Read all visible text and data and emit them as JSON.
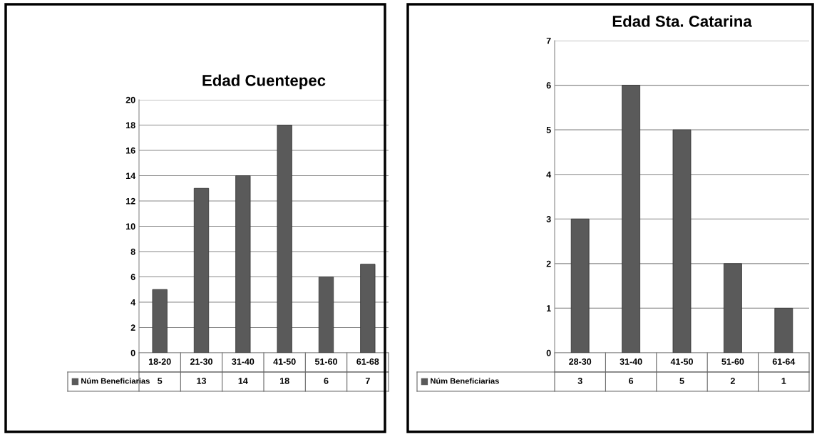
{
  "chart_data": [
    {
      "type": "bar",
      "title": "Edad Cuentepec",
      "categories": [
        "18-20",
        "21-30",
        "31-40",
        "41-50",
        "51-60",
        "61-68"
      ],
      "series": [
        {
          "name": "Núm Beneficiarias",
          "color": "#5a5a5a",
          "values": [
            5,
            13,
            14,
            18,
            6,
            7
          ]
        }
      ],
      "ylim": [
        0,
        20
      ],
      "yticks": [
        0,
        2,
        4,
        6,
        8,
        10,
        12,
        14,
        16,
        18,
        20
      ],
      "grid": "y",
      "data_labels": true
    },
    {
      "type": "bar",
      "title": "Edad Sta. Catarina",
      "categories": [
        "28-30",
        "31-40",
        "41-50",
        "51-60",
        "61-64"
      ],
      "series": [
        {
          "name": "Núm Beneficiarias",
          "color": "#5a5a5a",
          "values": [
            3,
            6,
            5,
            2,
            1
          ]
        }
      ],
      "ylim": [
        0,
        7
      ],
      "yticks": [
        0,
        1,
        2,
        3,
        4,
        5,
        6,
        7
      ],
      "grid": "y",
      "data_labels": true
    }
  ]
}
